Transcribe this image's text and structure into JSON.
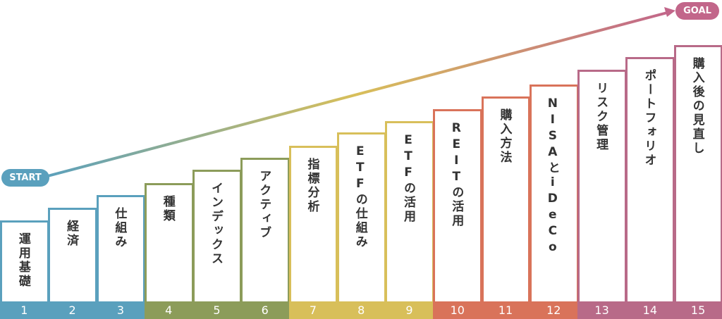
{
  "start": "START",
  "goal": "GOAL",
  "steps": [
    {
      "number": "1",
      "label": "運用基礎"
    },
    {
      "number": "2",
      "label": "経済"
    },
    {
      "number": "3",
      "label": "仕組み"
    },
    {
      "number": "4",
      "label": "種類"
    },
    {
      "number": "5",
      "label": "インデックス"
    },
    {
      "number": "6",
      "label": "アクティブ"
    },
    {
      "number": "7",
      "label": "指標分析"
    },
    {
      "number": "8",
      "label": "ETFの仕組み"
    },
    {
      "number": "9",
      "label": "ETFの活用"
    },
    {
      "number": "10",
      "label": "REITの活用"
    },
    {
      "number": "11",
      "label": "購入方法"
    },
    {
      "number": "12",
      "label": "NISAとiDeCo"
    },
    {
      "number": "13",
      "label": "リスク管理"
    },
    {
      "number": "14",
      "label": "ポートフォリオ"
    },
    {
      "number": "15",
      "label": "購入後の見直し"
    }
  ]
}
